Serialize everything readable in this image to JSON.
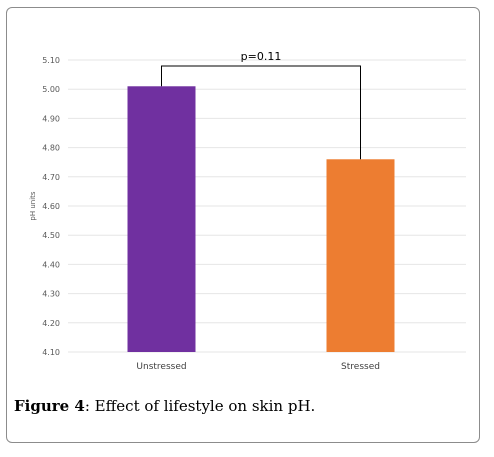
{
  "caption": {
    "label": "Figure 4",
    "text": ": Effect of lifestyle on skin pH."
  },
  "chart_data": {
    "type": "bar",
    "categories": [
      "Unstressed",
      "Stressed"
    ],
    "values": [
      5.01,
      4.76
    ],
    "colors": [
      "#7030a0",
      "#ed7d31"
    ],
    "ylabel": "pH units",
    "ylim": [
      4.1,
      5.1
    ],
    "yticks": [
      "4.10",
      "4.20",
      "4.30",
      "4.40",
      "4.50",
      "4.60",
      "4.70",
      "4.80",
      "4.90",
      "5.00",
      "5.10"
    ],
    "grid": true,
    "annotation": "p=0.11"
  }
}
